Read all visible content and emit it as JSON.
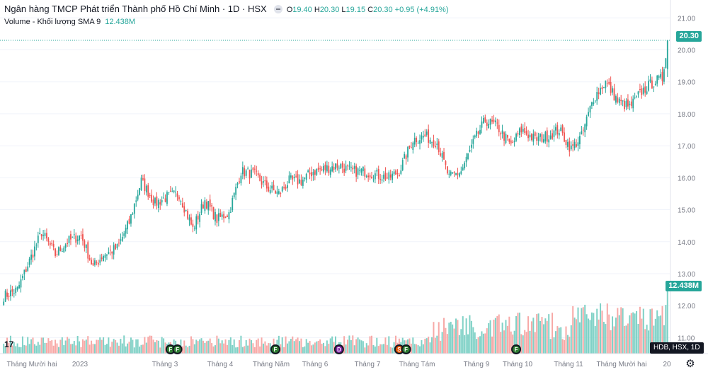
{
  "header": {
    "symbol_title": "Ngân hàng TMCP Phát triển Thành phố Hồ Chí Minh · 1D · HSX",
    "open_label": "O",
    "open": "19.40",
    "high_label": "H",
    "high": "20.30",
    "low_label": "L",
    "low": "19.15",
    "close_label": "C",
    "close": "20.30",
    "change": "+0.95 (+4.91%)"
  },
  "volume_legend": {
    "label": "Volume - Khối lượng SMA 9",
    "value": "12.438M"
  },
  "price_tag": "20.30",
  "volume_tag": "12.438M",
  "symbol_tag": "HDB, HSX, 1D",
  "colors": {
    "up": "#26a69a",
    "down": "#ef5350",
    "vol_up": "#7fd1c6",
    "vol_down": "#f7a9a7",
    "grid": "#f0f3fa",
    "text": "#787b86"
  },
  "icons": {
    "settings": "gear-icon",
    "logo": "tradingview-logo",
    "dividend": "dividend-icon",
    "earnings": "earnings-icon",
    "split": "split-icon"
  },
  "chart_data": {
    "type": "candlestick",
    "y_ticks": [
      "21.00",
      "20.00",
      "19.00",
      "18.00",
      "17.00",
      "16.00",
      "15.00",
      "14.00",
      "13.00",
      "12.00",
      "11.00"
    ],
    "ylim": [
      10.5,
      21.25
    ],
    "x_labels": [
      "Tháng Mười hai",
      "2023",
      "Tháng 3",
      "Tháng 4",
      "Tháng Năm",
      "Tháng 6",
      "Tháng 7",
      "Tháng Tám",
      "Tháng 9",
      "Tháng 10",
      "Tháng 11",
      "Tháng Mười hai",
      "20"
    ],
    "close_anchors": [
      [
        0,
        12.3
      ],
      [
        8,
        12.5
      ],
      [
        15,
        13.4
      ],
      [
        22,
        14.3
      ],
      [
        30,
        13.6
      ],
      [
        37,
        14.0
      ],
      [
        45,
        14.2
      ],
      [
        52,
        13.2
      ],
      [
        58,
        13.6
      ],
      [
        66,
        13.8
      ],
      [
        73,
        14.6
      ],
      [
        80,
        15.9
      ],
      [
        88,
        15.2
      ],
      [
        95,
        15.4
      ],
      [
        102,
        15.5
      ],
      [
        110,
        14.4
      ],
      [
        117,
        15.3
      ],
      [
        124,
        14.7
      ],
      [
        131,
        14.9
      ],
      [
        138,
        16.2
      ],
      [
        146,
        16.1
      ],
      [
        153,
        15.7
      ],
      [
        160,
        15.5
      ],
      [
        166,
        15.9
      ],
      [
        173,
        15.9
      ],
      [
        180,
        16.2
      ],
      [
        188,
        16.3
      ],
      [
        195,
        16.4
      ],
      [
        202,
        16.2
      ],
      [
        210,
        16.2
      ],
      [
        216,
        16.1
      ],
      [
        224,
        16.0
      ],
      [
        230,
        16.2
      ],
      [
        238,
        17.2
      ],
      [
        245,
        17.3
      ],
      [
        252,
        17.1
      ],
      [
        259,
        16.0
      ],
      [
        266,
        16.2
      ],
      [
        274,
        17.2
      ],
      [
        280,
        17.8
      ],
      [
        287,
        17.6
      ],
      [
        295,
        17.0
      ],
      [
        301,
        17.5
      ],
      [
        309,
        17.2
      ],
      [
        316,
        17.3
      ],
      [
        323,
        17.5
      ],
      [
        330,
        16.9
      ],
      [
        336,
        17.3
      ],
      [
        343,
        18.5
      ],
      [
        350,
        19.0
      ],
      [
        357,
        18.4
      ],
      [
        364,
        18.2
      ],
      [
        371,
        18.7
      ],
      [
        378,
        19.0
      ],
      [
        383,
        19.1
      ],
      [
        386,
        20.3
      ]
    ],
    "event_markers": [
      {
        "label": "F",
        "day": 97
      },
      {
        "label": "F",
        "day": 101
      },
      {
        "label": "F",
        "day": 158
      },
      {
        "label": "D",
        "day": 195
      },
      {
        "label": "S",
        "day": 230
      },
      {
        "label": "F",
        "day": 234
      },
      {
        "label": "F",
        "day": 298
      }
    ],
    "last_candle": {
      "open": 19.4,
      "high": 20.3,
      "low": 19.15,
      "close": 20.3
    },
    "last_volume": 12.438
  }
}
